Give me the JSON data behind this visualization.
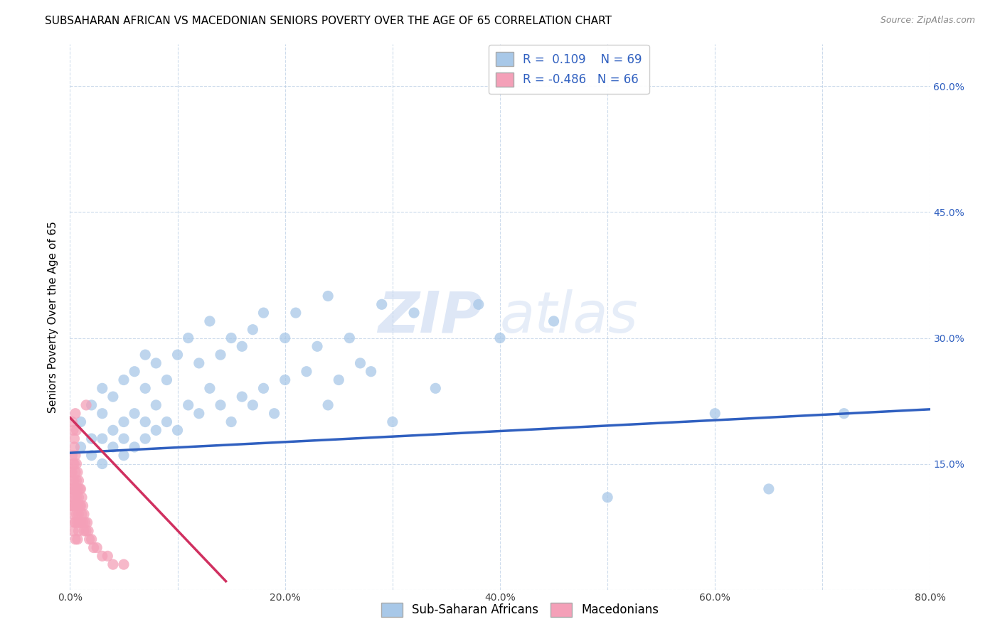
{
  "title": "SUBSAHARAN AFRICAN VS MACEDONIAN SENIORS POVERTY OVER THE AGE OF 65 CORRELATION CHART",
  "source": "Source: ZipAtlas.com",
  "ylabel": "Seniors Poverty Over the Age of 65",
  "xlim": [
    0.0,
    0.8
  ],
  "ylim": [
    0.0,
    0.65
  ],
  "xticks": [
    0.0,
    0.1,
    0.2,
    0.3,
    0.4,
    0.5,
    0.6,
    0.7,
    0.8
  ],
  "yticks": [
    0.0,
    0.15,
    0.3,
    0.45,
    0.6
  ],
  "right_ytick_labels": [
    "",
    "15.0%",
    "30.0%",
    "45.0%",
    "60.0%"
  ],
  "xtick_labels": [
    "0.0%",
    "",
    "20.0%",
    "",
    "40.0%",
    "",
    "60.0%",
    "",
    "80.0%"
  ],
  "blue_R": 0.109,
  "blue_N": 69,
  "pink_R": -0.486,
  "pink_N": 66,
  "blue_color": "#a8c8e8",
  "pink_color": "#f4a0b8",
  "blue_line_color": "#3060c0",
  "pink_line_color": "#d03060",
  "legend_label_blue": "Sub-Saharan Africans",
  "legend_label_pink": "Macedonians",
  "watermark_zip": "ZIP",
  "watermark_atlas": "atlas",
  "blue_scatter_x": [
    0.01,
    0.01,
    0.02,
    0.02,
    0.02,
    0.03,
    0.03,
    0.03,
    0.03,
    0.04,
    0.04,
    0.04,
    0.05,
    0.05,
    0.05,
    0.05,
    0.06,
    0.06,
    0.06,
    0.07,
    0.07,
    0.07,
    0.07,
    0.08,
    0.08,
    0.08,
    0.09,
    0.09,
    0.1,
    0.1,
    0.11,
    0.11,
    0.12,
    0.12,
    0.13,
    0.13,
    0.14,
    0.14,
    0.15,
    0.15,
    0.16,
    0.16,
    0.17,
    0.17,
    0.18,
    0.18,
    0.19,
    0.2,
    0.2,
    0.21,
    0.22,
    0.23,
    0.24,
    0.24,
    0.25,
    0.26,
    0.27,
    0.28,
    0.29,
    0.3,
    0.32,
    0.34,
    0.38,
    0.4,
    0.45,
    0.5,
    0.6,
    0.65,
    0.72
  ],
  "blue_scatter_y": [
    0.17,
    0.2,
    0.16,
    0.18,
    0.22,
    0.15,
    0.18,
    0.21,
    0.24,
    0.17,
    0.19,
    0.23,
    0.16,
    0.18,
    0.2,
    0.25,
    0.17,
    0.21,
    0.26,
    0.18,
    0.2,
    0.24,
    0.28,
    0.19,
    0.22,
    0.27,
    0.2,
    0.25,
    0.19,
    0.28,
    0.22,
    0.3,
    0.21,
    0.27,
    0.24,
    0.32,
    0.22,
    0.28,
    0.2,
    0.3,
    0.23,
    0.29,
    0.22,
    0.31,
    0.24,
    0.33,
    0.21,
    0.25,
    0.3,
    0.33,
    0.26,
    0.29,
    0.22,
    0.35,
    0.25,
    0.3,
    0.27,
    0.26,
    0.34,
    0.2,
    0.33,
    0.24,
    0.34,
    0.3,
    0.32,
    0.11,
    0.21,
    0.12,
    0.21
  ],
  "pink_scatter_x": [
    0.001,
    0.001,
    0.001,
    0.002,
    0.002,
    0.002,
    0.002,
    0.003,
    0.003,
    0.003,
    0.003,
    0.003,
    0.004,
    0.004,
    0.004,
    0.004,
    0.004,
    0.005,
    0.005,
    0.005,
    0.005,
    0.005,
    0.005,
    0.006,
    0.006,
    0.006,
    0.006,
    0.007,
    0.007,
    0.007,
    0.007,
    0.007,
    0.008,
    0.008,
    0.008,
    0.008,
    0.009,
    0.009,
    0.009,
    0.01,
    0.01,
    0.01,
    0.011,
    0.011,
    0.012,
    0.012,
    0.013,
    0.013,
    0.014,
    0.015,
    0.016,
    0.017,
    0.018,
    0.02,
    0.022,
    0.025,
    0.03,
    0.035,
    0.04,
    0.05,
    0.002,
    0.003,
    0.004,
    0.005,
    0.006,
    0.015
  ],
  "pink_scatter_y": [
    0.14,
    0.12,
    0.1,
    0.16,
    0.14,
    0.12,
    0.1,
    0.15,
    0.13,
    0.11,
    0.09,
    0.07,
    0.17,
    0.15,
    0.13,
    0.11,
    0.08,
    0.16,
    0.14,
    0.12,
    0.1,
    0.08,
    0.06,
    0.15,
    0.13,
    0.11,
    0.09,
    0.14,
    0.12,
    0.1,
    0.08,
    0.06,
    0.13,
    0.11,
    0.09,
    0.07,
    0.12,
    0.1,
    0.08,
    0.12,
    0.1,
    0.08,
    0.11,
    0.09,
    0.1,
    0.08,
    0.09,
    0.07,
    0.08,
    0.07,
    0.08,
    0.07,
    0.06,
    0.06,
    0.05,
    0.05,
    0.04,
    0.04,
    0.03,
    0.03,
    0.2,
    0.19,
    0.18,
    0.21,
    0.19,
    0.22
  ],
  "title_fontsize": 11,
  "axis_fontsize": 11,
  "tick_fontsize": 10,
  "legend_fontsize": 12,
  "source_fontsize": 9
}
